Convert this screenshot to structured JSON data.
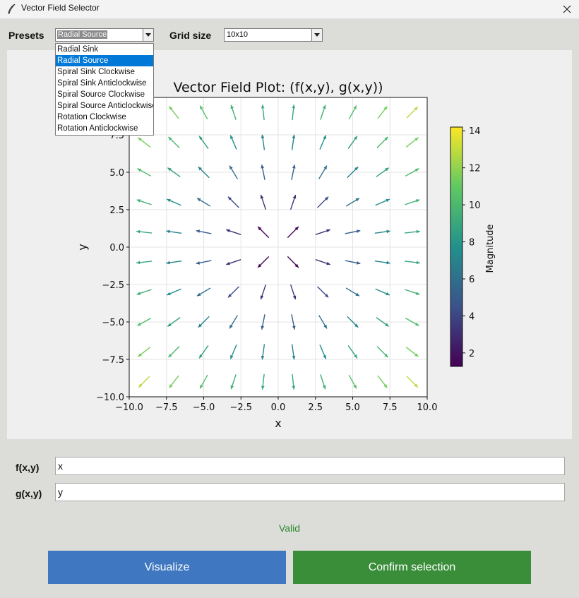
{
  "window": {
    "title": "Vector Field Selector"
  },
  "presets": {
    "label": "Presets",
    "selected": "Radial Source",
    "options": [
      "Radial Sink",
      "Radial Source",
      "Spiral Sink Clockwise",
      "Spiral Sink Anticlockwise",
      "Spiral Source Clockwise",
      "Spiral Source Anticlockwise",
      "Rotation Clockwise",
      "Rotation Anticlockwise"
    ],
    "active_option": "Radial Source"
  },
  "grid_size": {
    "label": "Grid size",
    "selected": "10x10"
  },
  "fields": {
    "f_label": "f(x,y)",
    "f_value": "x",
    "g_label": "g(x,y)",
    "g_value": "y"
  },
  "status": {
    "text": "Valid",
    "color": "#2e8b2e"
  },
  "buttons": {
    "visualize": "Visualize",
    "confirm": "Confirm selection"
  },
  "colors": {
    "visualize": "#3f78c0",
    "confirm": "#3a8e3a",
    "dropdown_highlight": "#0078d7"
  },
  "chart_data": {
    "type": "quiver",
    "title": "Vector Field Plot: (f(x,y), g(x,y))",
    "xlabel": "x",
    "ylabel": "y",
    "xlim": [
      -10,
      10
    ],
    "ylim": [
      -10,
      10
    ],
    "xticks": [
      "−10.0",
      "−7.5",
      "−5.0",
      "−2.5",
      "0.0",
      "2.5",
      "5.0",
      "7.5",
      "10.0"
    ],
    "yticks": [
      "−10.0",
      "−7.5",
      "−5.0",
      "−2.5",
      "0.0",
      "2.5",
      "5.0",
      "7.5"
    ],
    "grid": true,
    "field": {
      "f": "x",
      "g": "y"
    },
    "grid_points": {
      "min": -9,
      "max": 9,
      "count": 10
    },
    "colorbar": {
      "label": "Magnitude",
      "range": [
        1.27,
        14.2
      ],
      "ticks": [
        "2",
        "4",
        "6",
        "8",
        "10",
        "12",
        "14"
      ],
      "colormap": "viridis"
    }
  }
}
